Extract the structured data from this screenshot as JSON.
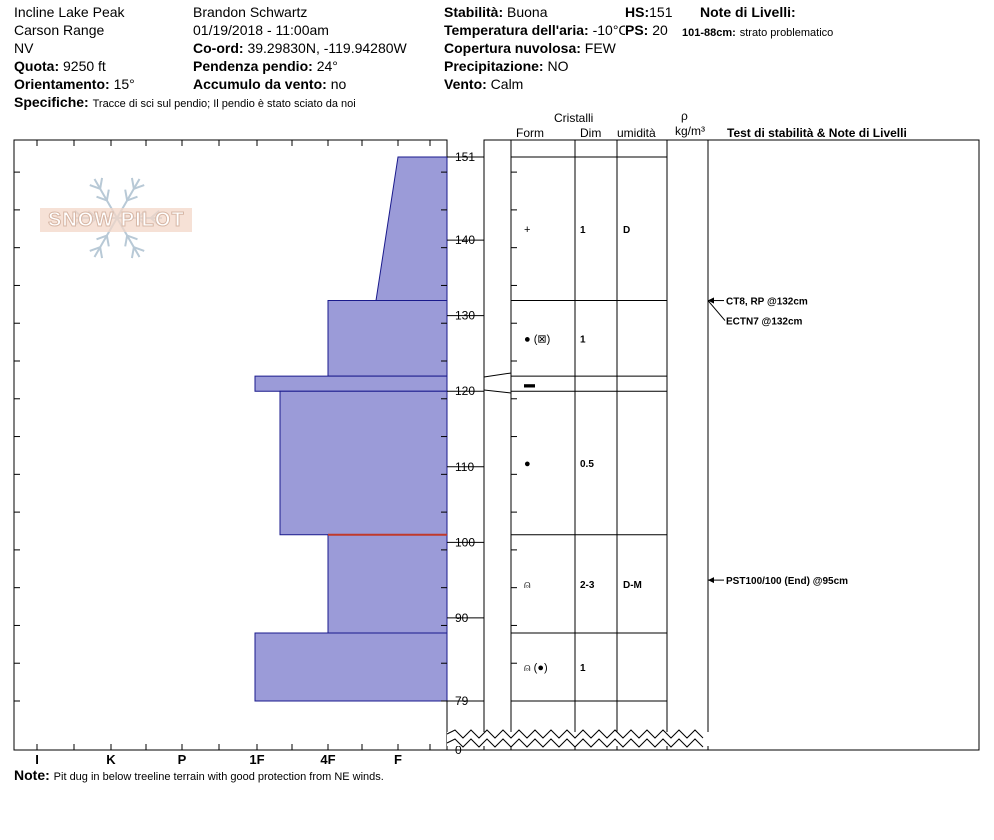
{
  "header": {
    "location": "Incline Lake Peak",
    "range": "Carson Range",
    "state": "NV",
    "quota_label": "Quota:",
    "quota_value": "9250 ft",
    "orient_label": "Orientamento:",
    "orient_value": "15°",
    "specifiche_label": "Specifiche:",
    "specifiche_value": "Tracce di sci sul pendio;  Il pendio è stato sciato da noi",
    "observer": "Brandon Schwartz",
    "datetime": "01/19/2018 - 11:00am",
    "coord_label": "Co-ord:",
    "coord_value": "39.29830N, -119.94280W",
    "pendenza_label": "Pendenza pendio:",
    "pendenza_value": "24°",
    "accumulo_label": "Accumulo da vento:",
    "accumulo_value": "no",
    "stabilita_label": "Stabilità:",
    "stabilita_value": "Buona",
    "temp_label": "Temperatura dell'aria:",
    "temp_value": "-10°C",
    "copertura_label": "Copertura nuvolosa:",
    "copertura_value": "FEW",
    "precip_label": "Precipitazione:",
    "precip_value": "NO",
    "vento_label": "Vento:",
    "vento_value": "Calm",
    "hs_label": "HS:",
    "hs_value": "151",
    "ps_label": "PS:",
    "ps_value": "20",
    "note_livelli_label": "Note di Livelli:",
    "note_livelli_range": "101-88cm:",
    "note_livelli_value": "strato problematico"
  },
  "logo_text": "SNOW PILOT",
  "footer": {
    "note_label": "Note:",
    "note_value": "Pit dug in below treeline terrain with good protection from NE winds."
  },
  "columns": {
    "cristalli": "Cristalli",
    "form": "Form",
    "dim": "Dim",
    "umidita": "umidità",
    "rho": "ρ",
    "rho_unit": "kg/m³",
    "test": "Test di stabilità & Note di Livelli"
  },
  "chart_data": {
    "type": "snow-profile",
    "hardness_scale": [
      "I",
      "K",
      "P",
      "1F",
      "4F",
      "F"
    ],
    "y_ticks": [
      151,
      140,
      130,
      120,
      110,
      100,
      90,
      79,
      0
    ],
    "hardness_layers": [
      {
        "top": 151,
        "bottom": 132,
        "hardness_top": "F",
        "hardness_bottom": "4F+",
        "color": "#9b9bd8"
      },
      {
        "top": 132,
        "bottom": 122,
        "hardness": "4F",
        "color": "#9b9bd8"
      },
      {
        "top": 122,
        "bottom": 120,
        "hardness": "1F-",
        "color": "#9b9bd8"
      },
      {
        "top": 120,
        "bottom": 101,
        "hardness": "1F+",
        "color": "#9b9bd8"
      },
      {
        "top": 101,
        "bottom": 88,
        "hardness": "4F",
        "color": "#9b9bd8"
      },
      {
        "top": 88,
        "bottom": 79,
        "hardness": "1F-",
        "color": "#9b9bd8"
      }
    ],
    "problem_layer_line": 101,
    "problem_color": "#c0392b",
    "crystals": [
      {
        "top": 151,
        "bottom": 132,
        "form": "+",
        "dim": "1",
        "wet": "D"
      },
      {
        "top": 132,
        "bottom": 122,
        "form": "● (⊠)",
        "dim": "1",
        "wet": ""
      },
      {
        "top": 122,
        "bottom": 120,
        "form": "▬",
        "dim": "",
        "wet": ""
      },
      {
        "top": 120,
        "bottom": 101,
        "form": "●",
        "dim": "0.5",
        "wet": ""
      },
      {
        "top": 101,
        "bottom": 88,
        "form": "⍝",
        "dim": "2-3",
        "wet": "D-M"
      },
      {
        "top": 88,
        "bottom": 79,
        "form": "⍝ (●)",
        "dim": "1",
        "wet": ""
      }
    ],
    "stability_tests": [
      {
        "label": "CT8, RP @132cm",
        "depth": 132
      },
      {
        "label": "ECTN7 @132cm",
        "depth": 132
      },
      {
        "label": "PST100/100 (End) @95cm",
        "depth": 95
      }
    ]
  }
}
